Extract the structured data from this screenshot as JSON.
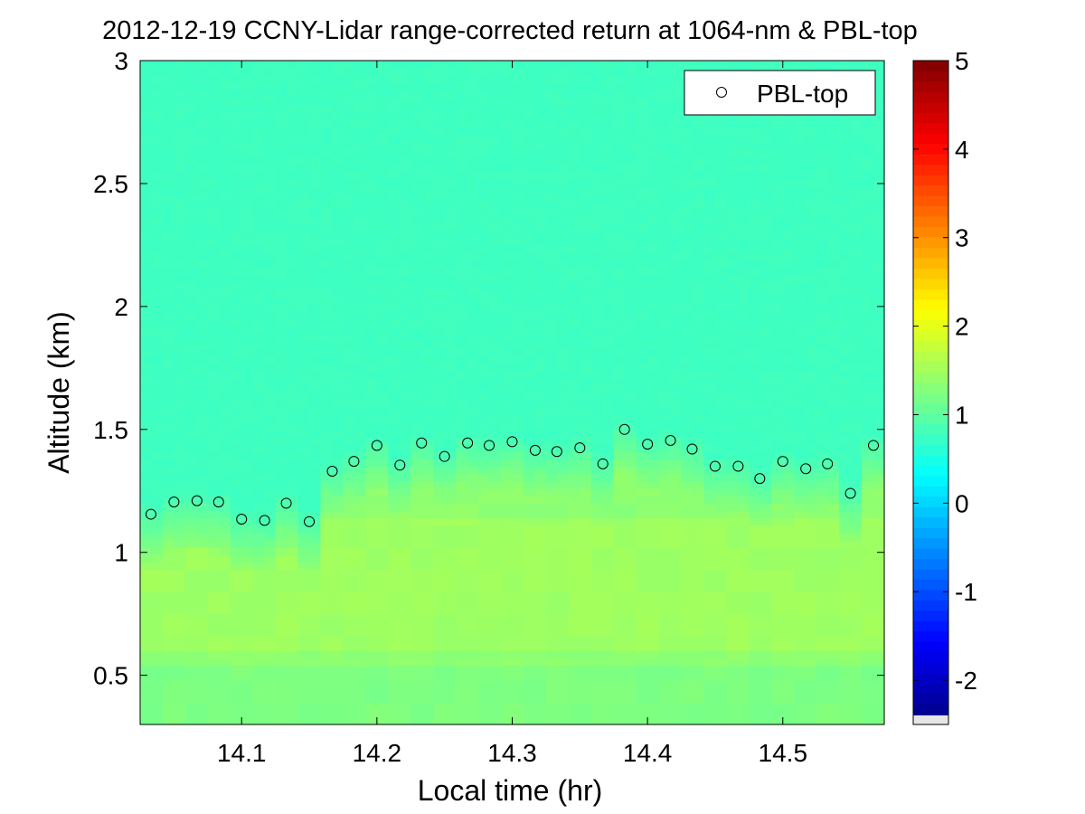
{
  "chart_data": {
    "type": "heatmap",
    "title": "2012-12-19 CCNY-Lidar range-corrected return at 1064-nm & PBL-top",
    "xlabel": "Local time (hr)",
    "ylabel": "Altitude (km)",
    "xlim": [
      14.025,
      14.575
    ],
    "ylim": [
      0.3,
      3.0
    ],
    "xticks": [
      14.1,
      14.2,
      14.3,
      14.4,
      14.5
    ],
    "xtick_labels": [
      "14.1",
      "14.2",
      "14.3",
      "14.4",
      "14.5"
    ],
    "yticks": [
      0.5,
      1,
      1.5,
      2,
      2.5,
      3
    ],
    "ytick_labels": [
      "0.5",
      "1",
      "1.5",
      "2",
      "2.5",
      "3"
    ],
    "colorbar": {
      "clim": [
        -2.5,
        5
      ],
      "ticks": [
        -2,
        -1,
        0,
        1,
        2,
        3,
        4,
        5
      ],
      "tick_labels": [
        "-2",
        "-1",
        "0",
        "1",
        "2",
        "3",
        "4",
        "5"
      ],
      "colormap": "jet"
    },
    "legend": {
      "location": "top-right",
      "entries": [
        "PBL-top"
      ]
    },
    "pbl_series": {
      "name": "PBL-top",
      "marker": "open-circle",
      "x": [
        14.033,
        14.05,
        14.067,
        14.083,
        14.1,
        14.117,
        14.133,
        14.15,
        14.167,
        14.183,
        14.2,
        14.217,
        14.233,
        14.25,
        14.267,
        14.283,
        14.3,
        14.317,
        14.333,
        14.35,
        14.367,
        14.383,
        14.4,
        14.417,
        14.433,
        14.45,
        14.467,
        14.483,
        14.5,
        14.517,
        14.533,
        14.55,
        14.567
      ],
      "y": [
        1.155,
        1.205,
        1.21,
        1.205,
        1.135,
        1.13,
        1.2,
        1.125,
        1.33,
        1.37,
        1.435,
        1.355,
        1.445,
        1.39,
        1.445,
        1.435,
        1.45,
        1.415,
        1.41,
        1.425,
        1.36,
        1.5,
        1.44,
        1.455,
        1.42,
        1.35,
        1.35,
        1.3,
        1.37,
        1.34,
        1.36,
        1.24,
        1.435
      ]
    },
    "field_profile": {
      "description": "background signal: ~0.7 aloft (cyan), ~1.3-1.5 below boundary layer",
      "upper_value": 0.75,
      "lower_value": 1.35,
      "transition_km": 1.3
    }
  },
  "colors": {
    "background": "#ffffff",
    "axes": "#000000",
    "marker_edge": "#000000"
  }
}
